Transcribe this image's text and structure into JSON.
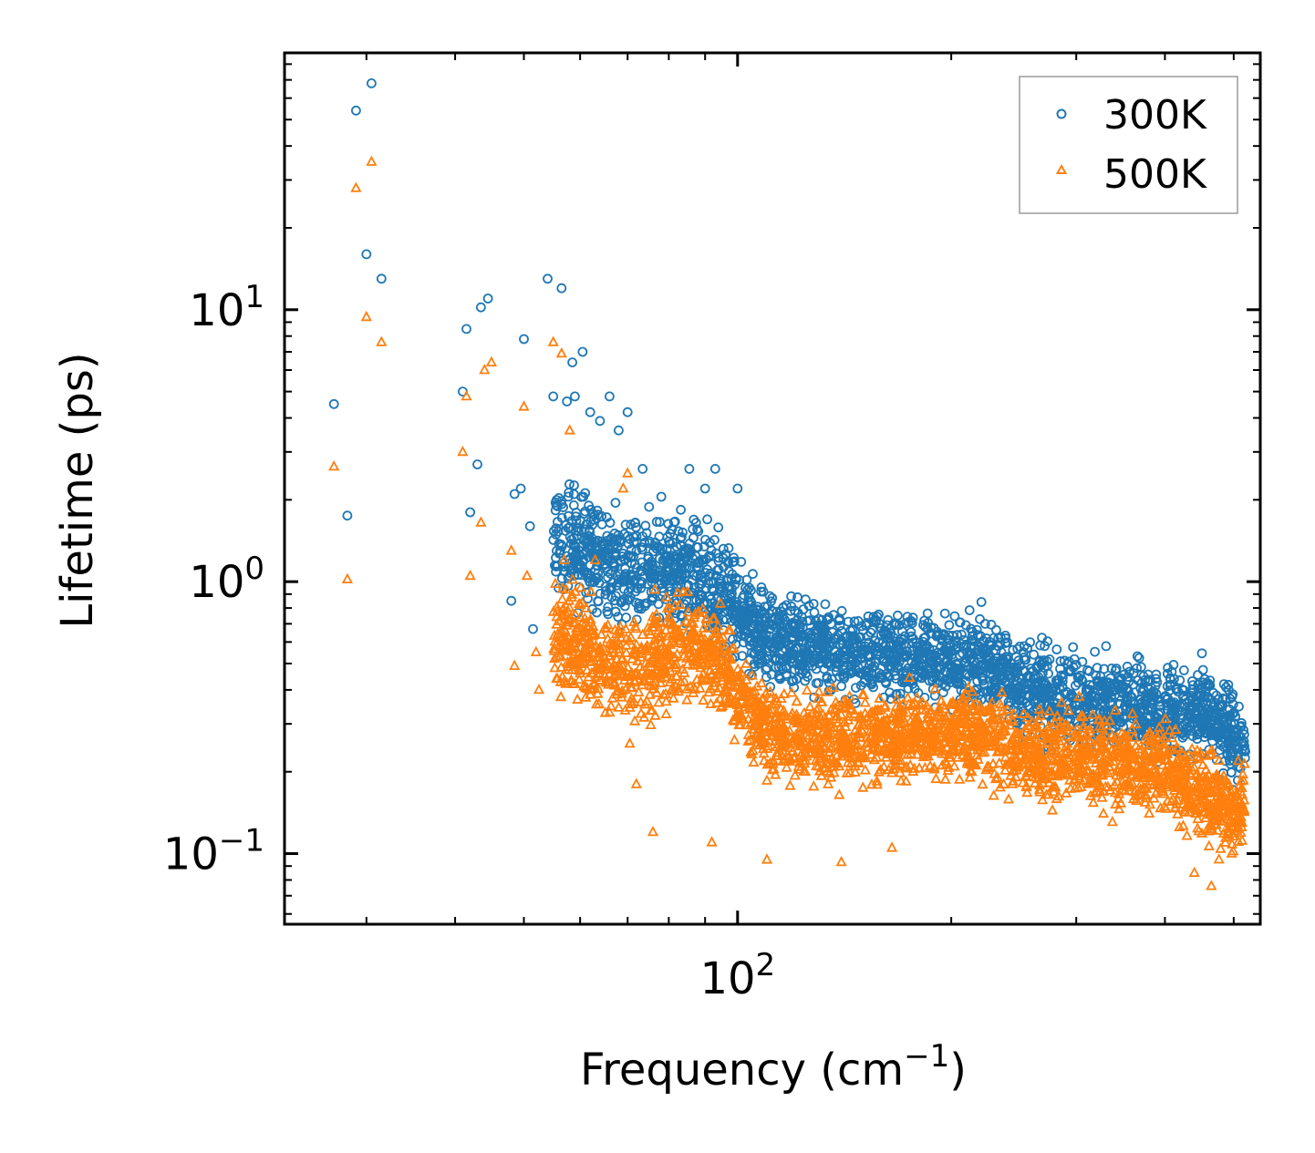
{
  "chart_data": {
    "type": "scatter",
    "title": "",
    "xlabel": "Frequency (cm",
    "xlabel_sup": "−1",
    "xlabel_end": ")",
    "ylabel": "Lifetime (ps)",
    "xscale": "log",
    "yscale": "log",
    "xlim": [
      23,
      545
    ],
    "ylim": [
      0.055,
      88
    ],
    "x_major_ticks": [
      {
        "value": 100,
        "base": "10",
        "exp": "2"
      }
    ],
    "y_major_ticks": [
      {
        "value": 0.1,
        "base": "10",
        "exp": "−1"
      },
      {
        "value": 1,
        "base": "10",
        "exp": "0"
      },
      {
        "value": 10,
        "base": "10",
        "exp": "1"
      }
    ],
    "legend_position": "top-right",
    "series": [
      {
        "name": "300K",
        "marker": "circle",
        "color": "#1f77b4",
        "key_points": [
          [
            27.0,
            4.5
          ],
          [
            28.2,
            1.75
          ],
          [
            29.0,
            54
          ],
          [
            30.0,
            16
          ],
          [
            30.5,
            68
          ],
          [
            31.5,
            13
          ],
          [
            41.0,
            5.0
          ],
          [
            41.5,
            8.5
          ],
          [
            42.0,
            1.8
          ],
          [
            43.0,
            2.7
          ],
          [
            43.5,
            10.2
          ],
          [
            44.5,
            11.0
          ],
          [
            48.0,
            0.85
          ],
          [
            48.5,
            2.1
          ],
          [
            49.5,
            2.2
          ],
          [
            50.0,
            7.8
          ],
          [
            51.0,
            1.6
          ],
          [
            51.5,
            0.67
          ],
          [
            54.0,
            13
          ],
          [
            55.0,
            4.8
          ],
          [
            56.5,
            12
          ],
          [
            57.5,
            4.6
          ],
          [
            58.5,
            6.4
          ],
          [
            59.0,
            4.8
          ],
          [
            60.5,
            7.0
          ],
          [
            62.0,
            4.2
          ],
          [
            64.0,
            3.9
          ],
          [
            66.0,
            4.8
          ],
          [
            68.0,
            3.6
          ],
          [
            70.0,
            4.2
          ],
          [
            73.5,
            2.6
          ],
          [
            85.5,
            2.6
          ],
          [
            90.0,
            2.2
          ],
          [
            93.0,
            2.6
          ],
          [
            100.0,
            2.2
          ]
        ],
        "trend": [
          [
            55,
            1.5
          ],
          [
            70,
            1.1
          ],
          [
            80,
            1.15
          ],
          [
            88,
            1.05
          ],
          [
            95,
            0.9
          ],
          [
            110,
            0.62
          ],
          [
            140,
            0.55
          ],
          [
            180,
            0.52
          ],
          [
            220,
            0.5
          ],
          [
            260,
            0.4
          ],
          [
            320,
            0.36
          ],
          [
            400,
            0.33
          ],
          [
            460,
            0.33
          ],
          [
            520,
            0.24
          ]
        ]
      },
      {
        "name": "500K",
        "marker": "triangle",
        "color": "#ff7f0e",
        "key_points": [
          [
            27.0,
            2.65
          ],
          [
            28.2,
            1.02
          ],
          [
            29.0,
            28
          ],
          [
            30.0,
            9.4
          ],
          [
            30.5,
            35
          ],
          [
            31.5,
            7.6
          ],
          [
            41.0,
            3.0
          ],
          [
            41.5,
            4.8
          ],
          [
            42.0,
            1.05
          ],
          [
            43.5,
            1.65
          ],
          [
            44.0,
            6.0
          ],
          [
            45.0,
            6.4
          ],
          [
            48.0,
            1.3
          ],
          [
            48.5,
            0.49
          ],
          [
            50.0,
            4.4
          ],
          [
            50.5,
            1.05
          ],
          [
            52.0,
            0.55
          ],
          [
            52.5,
            0.4
          ],
          [
            55.0,
            7.6
          ],
          [
            56.5,
            6.9
          ],
          [
            57.0,
            1.2
          ],
          [
            58.0,
            3.6
          ],
          [
            60.0,
            0.47
          ],
          [
            63.0,
            1.2
          ],
          [
            66.0,
            0.33
          ],
          [
            69.0,
            2.2
          ],
          [
            70.0,
            2.5
          ],
          [
            72.0,
            0.18
          ],
          [
            76.0,
            0.12
          ],
          [
            92.0,
            0.11
          ],
          [
            110.0,
            0.095
          ],
          [
            140.0,
            0.093
          ],
          [
            165.0,
            0.105
          ],
          [
            440.0,
            0.085
          ],
          [
            465.0,
            0.076
          ]
        ],
        "trend": [
          [
            55,
            0.65
          ],
          [
            70,
            0.48
          ],
          [
            80,
            0.55
          ],
          [
            88,
            0.6
          ],
          [
            95,
            0.48
          ],
          [
            110,
            0.28
          ],
          [
            140,
            0.26
          ],
          [
            180,
            0.27
          ],
          [
            220,
            0.27
          ],
          [
            260,
            0.23
          ],
          [
            320,
            0.22
          ],
          [
            400,
            0.21
          ],
          [
            460,
            0.15
          ],
          [
            520,
            0.15
          ]
        ]
      }
    ]
  }
}
